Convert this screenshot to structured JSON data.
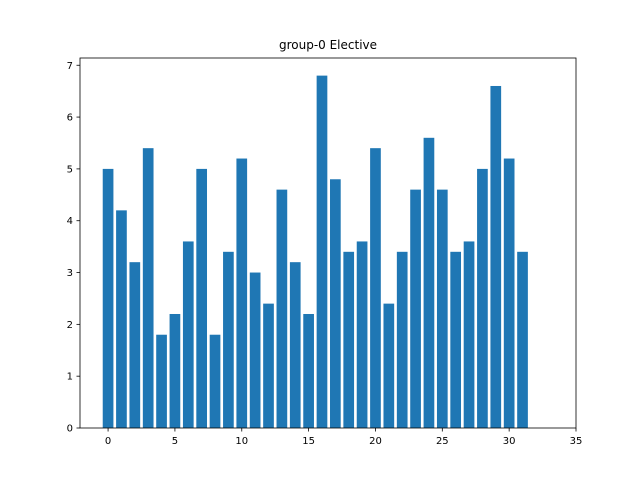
{
  "chart_data": {
    "type": "bar",
    "title": "group-0 Elective",
    "xlabel": "",
    "ylabel": "",
    "x": [
      0,
      1,
      2,
      3,
      4,
      5,
      6,
      7,
      8,
      9,
      10,
      11,
      12,
      13,
      14,
      15,
      16,
      17,
      18,
      19,
      20,
      21,
      22,
      23,
      24,
      25,
      26,
      27,
      28,
      29,
      30,
      31
    ],
    "values": [
      5.0,
      4.2,
      3.2,
      5.4,
      1.8,
      2.2,
      3.6,
      5.0,
      1.8,
      3.4,
      5.2,
      3.0,
      2.4,
      4.6,
      3.2,
      2.2,
      6.8,
      4.8,
      3.4,
      3.6,
      5.4,
      2.4,
      3.4,
      4.6,
      5.6,
      4.6,
      3.4,
      3.6,
      5.0,
      6.6,
      5.2,
      3.4
    ],
    "xlim": [
      -2.1,
      35.0
    ],
    "ylim": [
      0,
      7.14
    ],
    "xticks": [
      0,
      5,
      10,
      15,
      20,
      25,
      30,
      35
    ],
    "yticks": [
      0,
      1,
      2,
      3,
      4,
      5,
      6,
      7
    ],
    "bar_color": "#1f77b4",
    "grid": false,
    "legend": "none"
  }
}
